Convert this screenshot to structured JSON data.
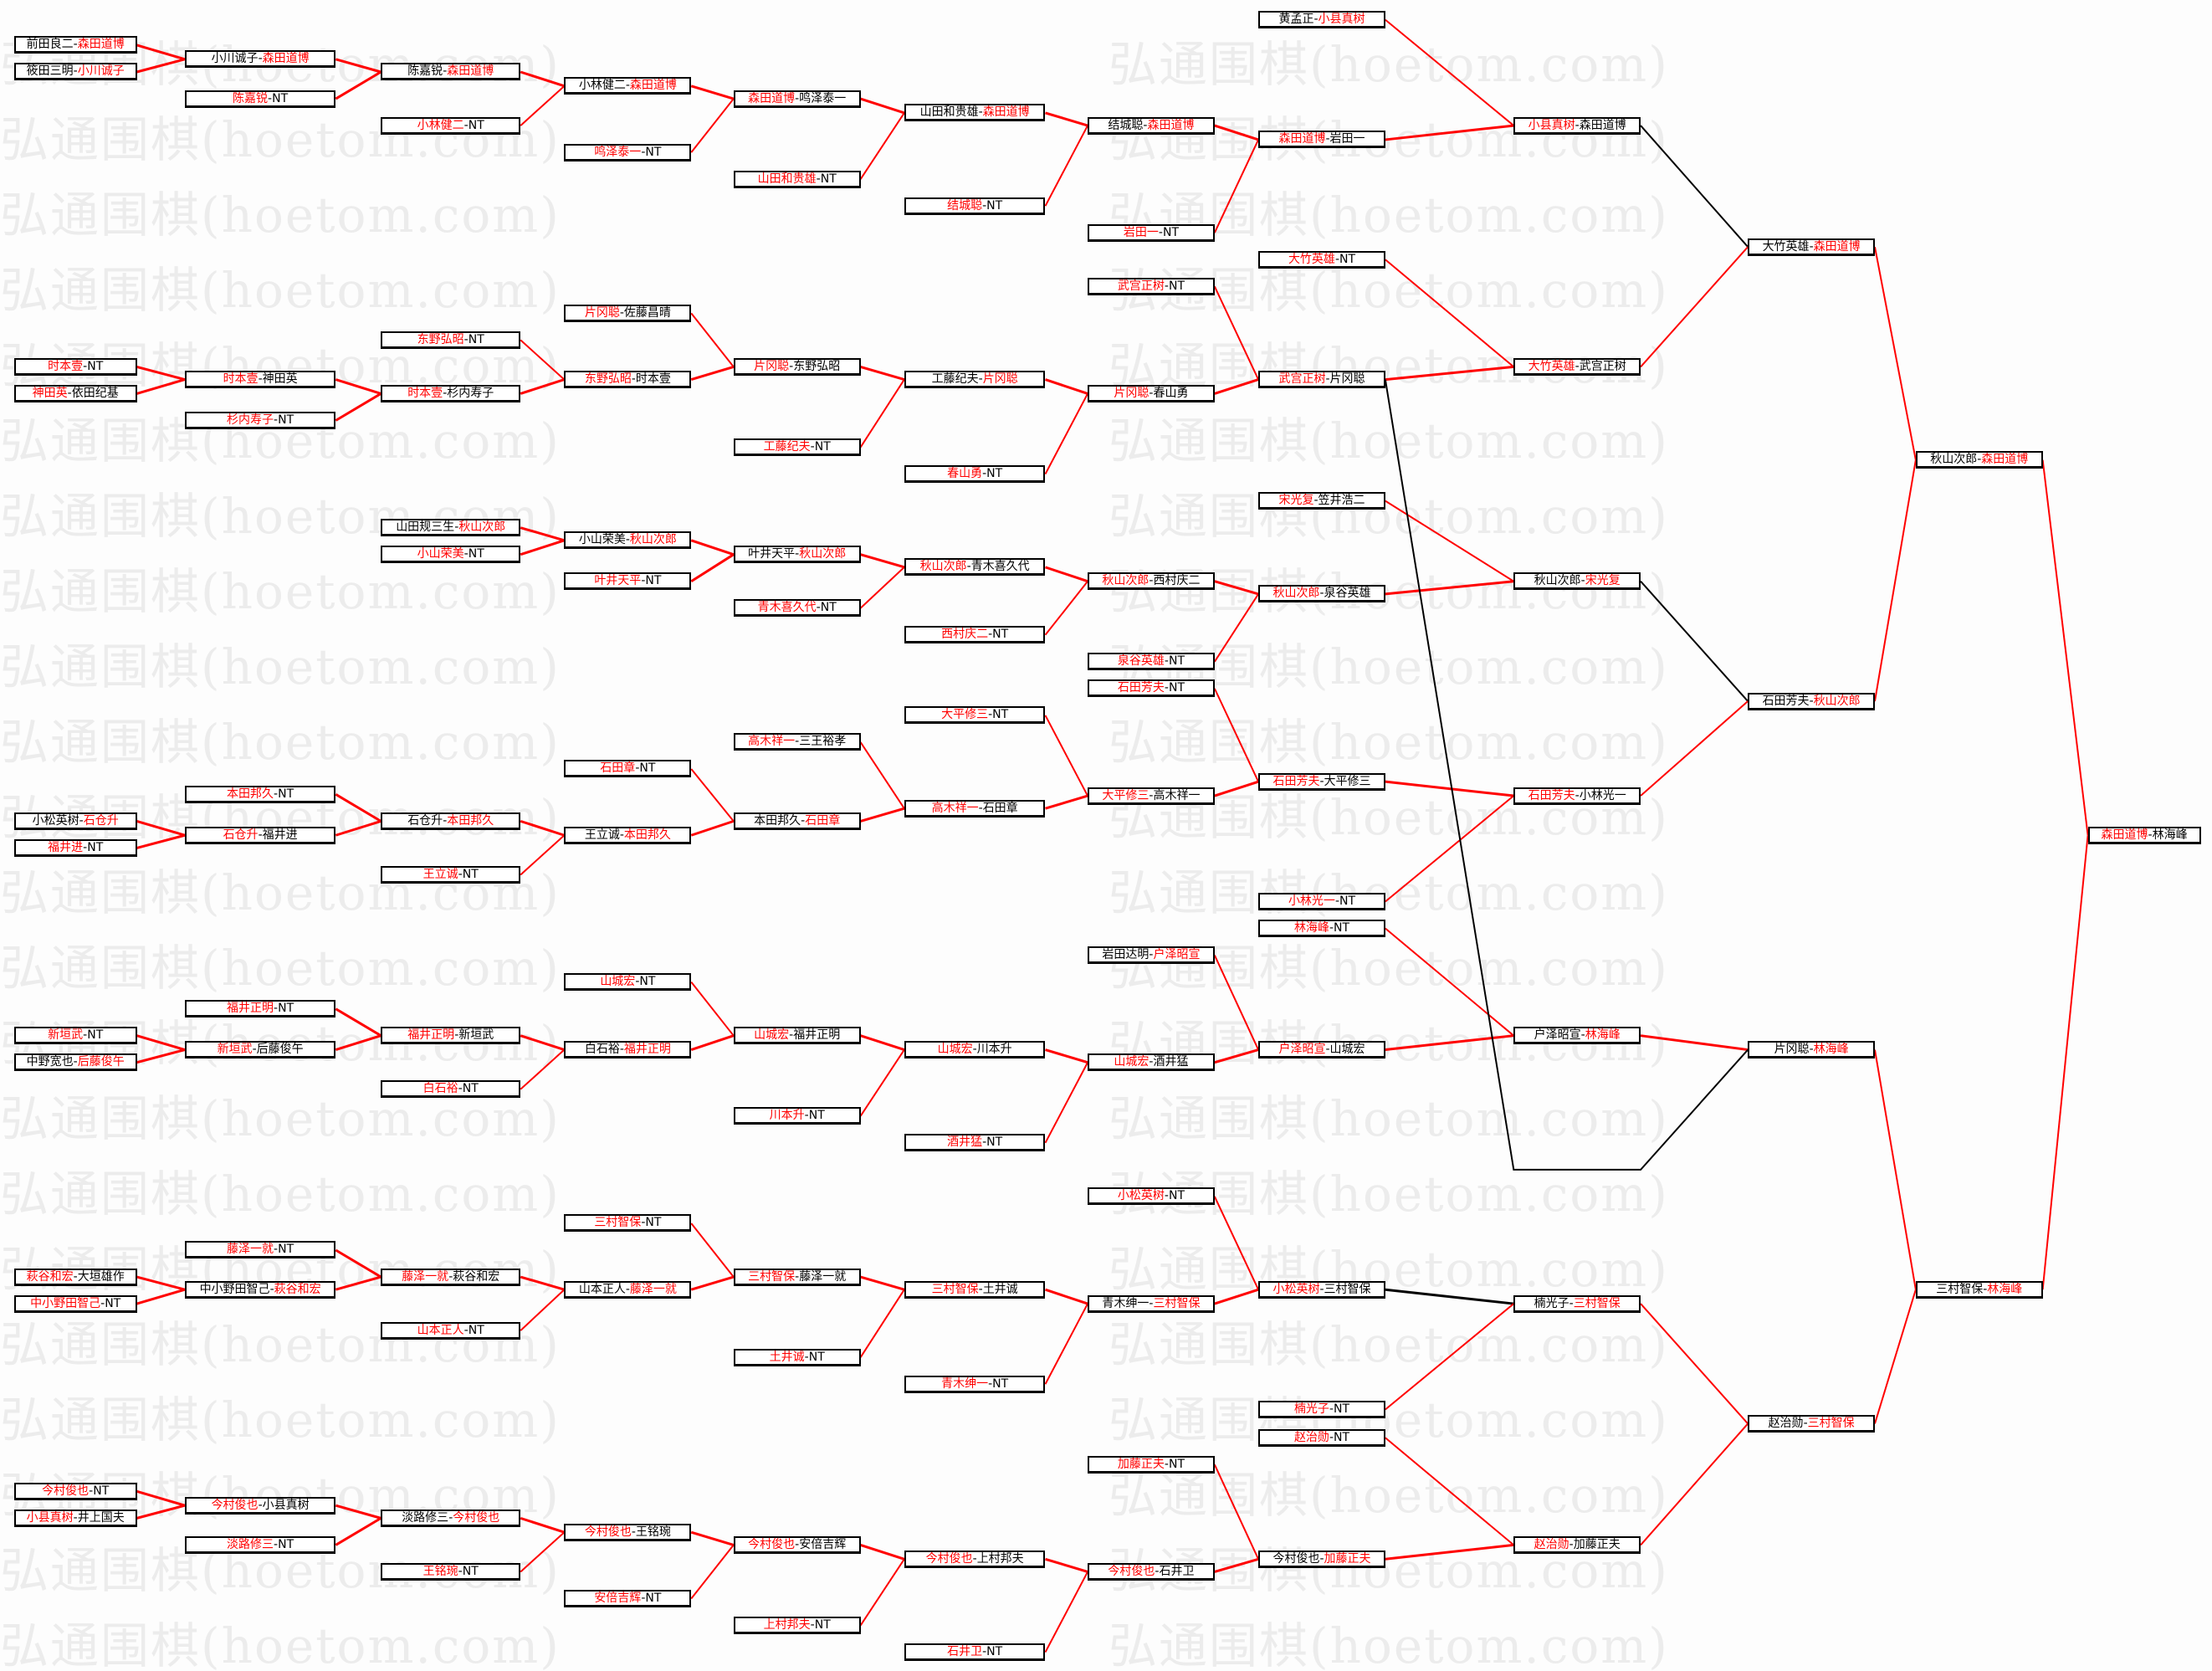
{
  "watermark": "弘通围棋(hoetom.com)",
  "colors": {
    "winner_text": "#ff0000",
    "normal_text": "#000000",
    "winner_line": "#ff0000",
    "other_line": "#000000"
  },
  "sep": "-",
  "boxes": [
    {
      "a": "前田良二",
      "b": "森田道博",
      "w": "b"
    },
    {
      "a": "筱田三明",
      "b": "小川诚子",
      "w": "b"
    },
    {
      "a": "时本壹",
      "b": "NT",
      "w": "a"
    },
    {
      "a": "神田英",
      "b": "依田纪基",
      "w": "a"
    },
    {
      "a": "小松英树",
      "b": "石仓升",
      "w": "b"
    },
    {
      "a": "福井进",
      "b": "NT",
      "w": "a"
    },
    {
      "a": "新垣武",
      "b": "NT",
      "w": "a"
    },
    {
      "a": "中野宽也",
      "b": "后藤俊午",
      "w": "b"
    },
    {
      "a": "萩谷和宏",
      "b": "大垣雄作",
      "w": "a"
    },
    {
      "a": "中小野田智己",
      "b": "NT",
      "w": "a"
    },
    {
      "a": "今村俊也",
      "b": "NT",
      "w": "a"
    },
    {
      "a": "小县真树",
      "b": "井上国夫",
      "w": "a"
    },
    {
      "a": "小川诚子",
      "b": "森田道博",
      "w": "b"
    },
    {
      "a": "陈嘉锐",
      "b": "NT",
      "w": "a"
    },
    {
      "a": "时本壹",
      "b": "神田英",
      "w": "a"
    },
    {
      "a": "杉内寿子",
      "b": "NT",
      "w": "a"
    },
    {
      "a": "本田邦久",
      "b": "NT",
      "w": "a"
    },
    {
      "a": "石仓升",
      "b": "福井进",
      "w": "a"
    },
    {
      "a": "福井正明",
      "b": "NT",
      "w": "a"
    },
    {
      "a": "新垣武",
      "b": "后藤俊午",
      "w": "a"
    },
    {
      "a": "藤泽一就",
      "b": "NT",
      "w": "a"
    },
    {
      "a": "中小野田智己",
      "b": "萩谷和宏",
      "w": "b"
    },
    {
      "a": "今村俊也",
      "b": "小县真树",
      "w": "a"
    },
    {
      "a": "淡路修三",
      "b": "NT",
      "w": "a"
    },
    {
      "a": "陈嘉锐",
      "b": "森田道博",
      "w": "b"
    },
    {
      "a": "小林健二",
      "b": "NT",
      "w": "a"
    },
    {
      "a": "东野弘昭",
      "b": "NT",
      "w": "a"
    },
    {
      "a": "时本壹",
      "b": "杉内寿子",
      "w": "a"
    },
    {
      "a": "山田规三生",
      "b": "秋山次郎",
      "w": "b"
    },
    {
      "a": "小山荣美",
      "b": "NT",
      "w": "a"
    },
    {
      "a": "石仓升",
      "b": "本田邦久",
      "w": "b"
    },
    {
      "a": "王立诚",
      "b": "NT",
      "w": "a"
    },
    {
      "a": "福井正明",
      "b": "新垣武",
      "w": "a"
    },
    {
      "a": "白石裕",
      "b": "NT",
      "w": "a"
    },
    {
      "a": "藤泽一就",
      "b": "萩谷和宏",
      "w": "a"
    },
    {
      "a": "山本正人",
      "b": "NT",
      "w": "a"
    },
    {
      "a": "淡路修三",
      "b": "今村俊也",
      "w": "b"
    },
    {
      "a": "王铭琬",
      "b": "NT",
      "w": "a"
    },
    {
      "a": "小林健二",
      "b": "森田道博",
      "w": "b"
    },
    {
      "a": "鸣泽泰一",
      "b": "NT",
      "w": "a"
    },
    {
      "a": "片冈聪",
      "b": "佐藤昌晴",
      "w": "a"
    },
    {
      "a": "东野弘昭",
      "b": "时本壹",
      "w": "a"
    },
    {
      "a": "小山荣美",
      "b": "秋山次郎",
      "w": "b"
    },
    {
      "a": "叶井天平",
      "b": "NT",
      "w": "a"
    },
    {
      "a": "石田章",
      "b": "NT",
      "w": "a"
    },
    {
      "a": "王立诚",
      "b": "本田邦久",
      "w": "b"
    },
    {
      "a": "山城宏",
      "b": "NT",
      "w": "a"
    },
    {
      "a": "白石裕",
      "b": "福井正明",
      "w": "b"
    },
    {
      "a": "三村智保",
      "b": "NT",
      "w": "a"
    },
    {
      "a": "山本正人",
      "b": "藤泽一就",
      "w": "b"
    },
    {
      "a": "今村俊也",
      "b": "王铭琬",
      "w": "a"
    },
    {
      "a": "安倍吉辉",
      "b": "NT",
      "w": "a"
    },
    {
      "a": "森田道博",
      "b": "鸣泽泰一",
      "w": "a"
    },
    {
      "a": "山田和贵雄",
      "b": "NT",
      "w": "a"
    },
    {
      "a": "片冈聪",
      "b": "东野弘昭",
      "w": "a"
    },
    {
      "a": "工藤纪夫",
      "b": "NT",
      "w": "a"
    },
    {
      "a": "叶井天平",
      "b": "秋山次郎",
      "w": "b"
    },
    {
      "a": "青木喜久代",
      "b": "NT",
      "w": "a"
    },
    {
      "a": "高木祥一",
      "b": "三王裕孝",
      "w": "a"
    },
    {
      "a": "本田邦久",
      "b": "石田章",
      "w": "b"
    },
    {
      "a": "山城宏",
      "b": "福井正明",
      "w": "a"
    },
    {
      "a": "川本升",
      "b": "NT",
      "w": "a"
    },
    {
      "a": "三村智保",
      "b": "藤泽一就",
      "w": "a"
    },
    {
      "a": "土井诚",
      "b": "NT",
      "w": "a"
    },
    {
      "a": "今村俊也",
      "b": "安倍吉辉",
      "w": "a"
    },
    {
      "a": "上村邦夫",
      "b": "NT",
      "w": "a"
    },
    {
      "a": "山田和贵雄",
      "b": "森田道博",
      "w": "b"
    },
    {
      "a": "结城聪",
      "b": "NT",
      "w": "a"
    },
    {
      "a": "工藤纪夫",
      "b": "片冈聪",
      "w": "b"
    },
    {
      "a": "春山勇",
      "b": "NT",
      "w": "a"
    },
    {
      "a": "秋山次郎",
      "b": "青木喜久代",
      "w": "a"
    },
    {
      "a": "西村庆二",
      "b": "NT",
      "w": "a"
    },
    {
      "a": "大平修三",
      "b": "NT",
      "w": "a"
    },
    {
      "a": "高木祥一",
      "b": "石田章",
      "w": "a"
    },
    {
      "a": "山城宏",
      "b": "川本升",
      "w": "a"
    },
    {
      "a": "酒井猛",
      "b": "NT",
      "w": "a"
    },
    {
      "a": "三村智保",
      "b": "土井诚",
      "w": "a"
    },
    {
      "a": "青木绅一",
      "b": "NT",
      "w": "a"
    },
    {
      "a": "今村俊也",
      "b": "上村邦夫",
      "w": "a"
    },
    {
      "a": "石井卫",
      "b": "NT",
      "w": "a"
    },
    {
      "a": "结城聪",
      "b": "森田道博",
      "w": "b"
    },
    {
      "a": "岩田一",
      "b": "NT",
      "w": "a"
    },
    {
      "a": "武宫正树",
      "b": "NT",
      "w": "a"
    },
    {
      "a": "片冈聪",
      "b": "春山勇",
      "w": "a"
    },
    {
      "a": "秋山次郎",
      "b": "西村庆二",
      "w": "a"
    },
    {
      "a": "泉谷英雄",
      "b": "NT",
      "w": "a"
    },
    {
      "a": "石田芳夫",
      "b": "NT",
      "w": "a"
    },
    {
      "a": "大平修三",
      "b": "高木祥一",
      "w": "a"
    },
    {
      "a": "岩田达明",
      "b": "户泽昭宣",
      "w": "b"
    },
    {
      "a": "山城宏",
      "b": "酒井猛",
      "w": "a"
    },
    {
      "a": "小松英树",
      "b": "NT",
      "w": "a"
    },
    {
      "a": "青木绅一",
      "b": "三村智保",
      "w": "b"
    },
    {
      "a": "加藤正夫",
      "b": "NT",
      "w": "a"
    },
    {
      "a": "今村俊也",
      "b": "石井卫",
      "w": "a"
    },
    {
      "a": "黄孟正",
      "b": "小县真树",
      "w": "b"
    },
    {
      "a": "森田道博",
      "b": "岩田一",
      "w": "a"
    },
    {
      "a": "大竹英雄",
      "b": "NT",
      "w": "a"
    },
    {
      "a": "武宫正树",
      "b": "片冈聪",
      "w": "a"
    },
    {
      "a": "宋光复",
      "b": "笠井浩二",
      "w": "a"
    },
    {
      "a": "秋山次郎",
      "b": "泉谷英雄",
      "w": "a"
    },
    {
      "a": "石田芳夫",
      "b": "大平修三",
      "w": "a"
    },
    {
      "a": "小林光一",
      "b": "NT",
      "w": "a"
    },
    {
      "a": "林海峰",
      "b": "NT",
      "w": "a"
    },
    {
      "a": "户泽昭宣",
      "b": "山城宏",
      "w": "a"
    },
    {
      "a": "小松英树",
      "b": "三村智保",
      "w": "a"
    },
    {
      "a": "楠光子",
      "b": "NT",
      "w": "a"
    },
    {
      "a": "赵治勋",
      "b": "NT",
      "w": "a"
    },
    {
      "a": "今村俊也",
      "b": "加藤正夫",
      "w": "b"
    },
    {
      "a": "小县真树",
      "b": "森田道博",
      "w": "a"
    },
    {
      "a": "大竹英雄",
      "b": "武宫正树",
      "w": "a"
    },
    {
      "a": "秋山次郎",
      "b": "宋光复",
      "w": "b"
    },
    {
      "a": "石田芳夫",
      "b": "小林光一",
      "w": "a"
    },
    {
      "a": "户泽昭宣",
      "b": "林海峰",
      "w": "b"
    },
    {
      "a": "楠光子",
      "b": "三村智保",
      "w": "b"
    },
    {
      "a": "赵治勋",
      "b": "加藤正夫",
      "w": "a"
    },
    {
      "a": "大竹英雄",
      "b": "森田道博",
      "w": "b"
    },
    {
      "a": "石田芳夫",
      "b": "秋山次郎",
      "w": "b"
    },
    {
      "a": "片冈聪",
      "b": "林海峰",
      "w": "b"
    },
    {
      "a": "赵治勋",
      "b": "三村智保",
      "w": "b"
    },
    {
      "a": "秋山次郎",
      "b": "森田道博",
      "w": "b"
    },
    {
      "a": "三村智保",
      "b": "林海峰",
      "w": "b"
    },
    {
      "a": "森田道博",
      "b": "林海峰",
      "w": "a"
    }
  ]
}
